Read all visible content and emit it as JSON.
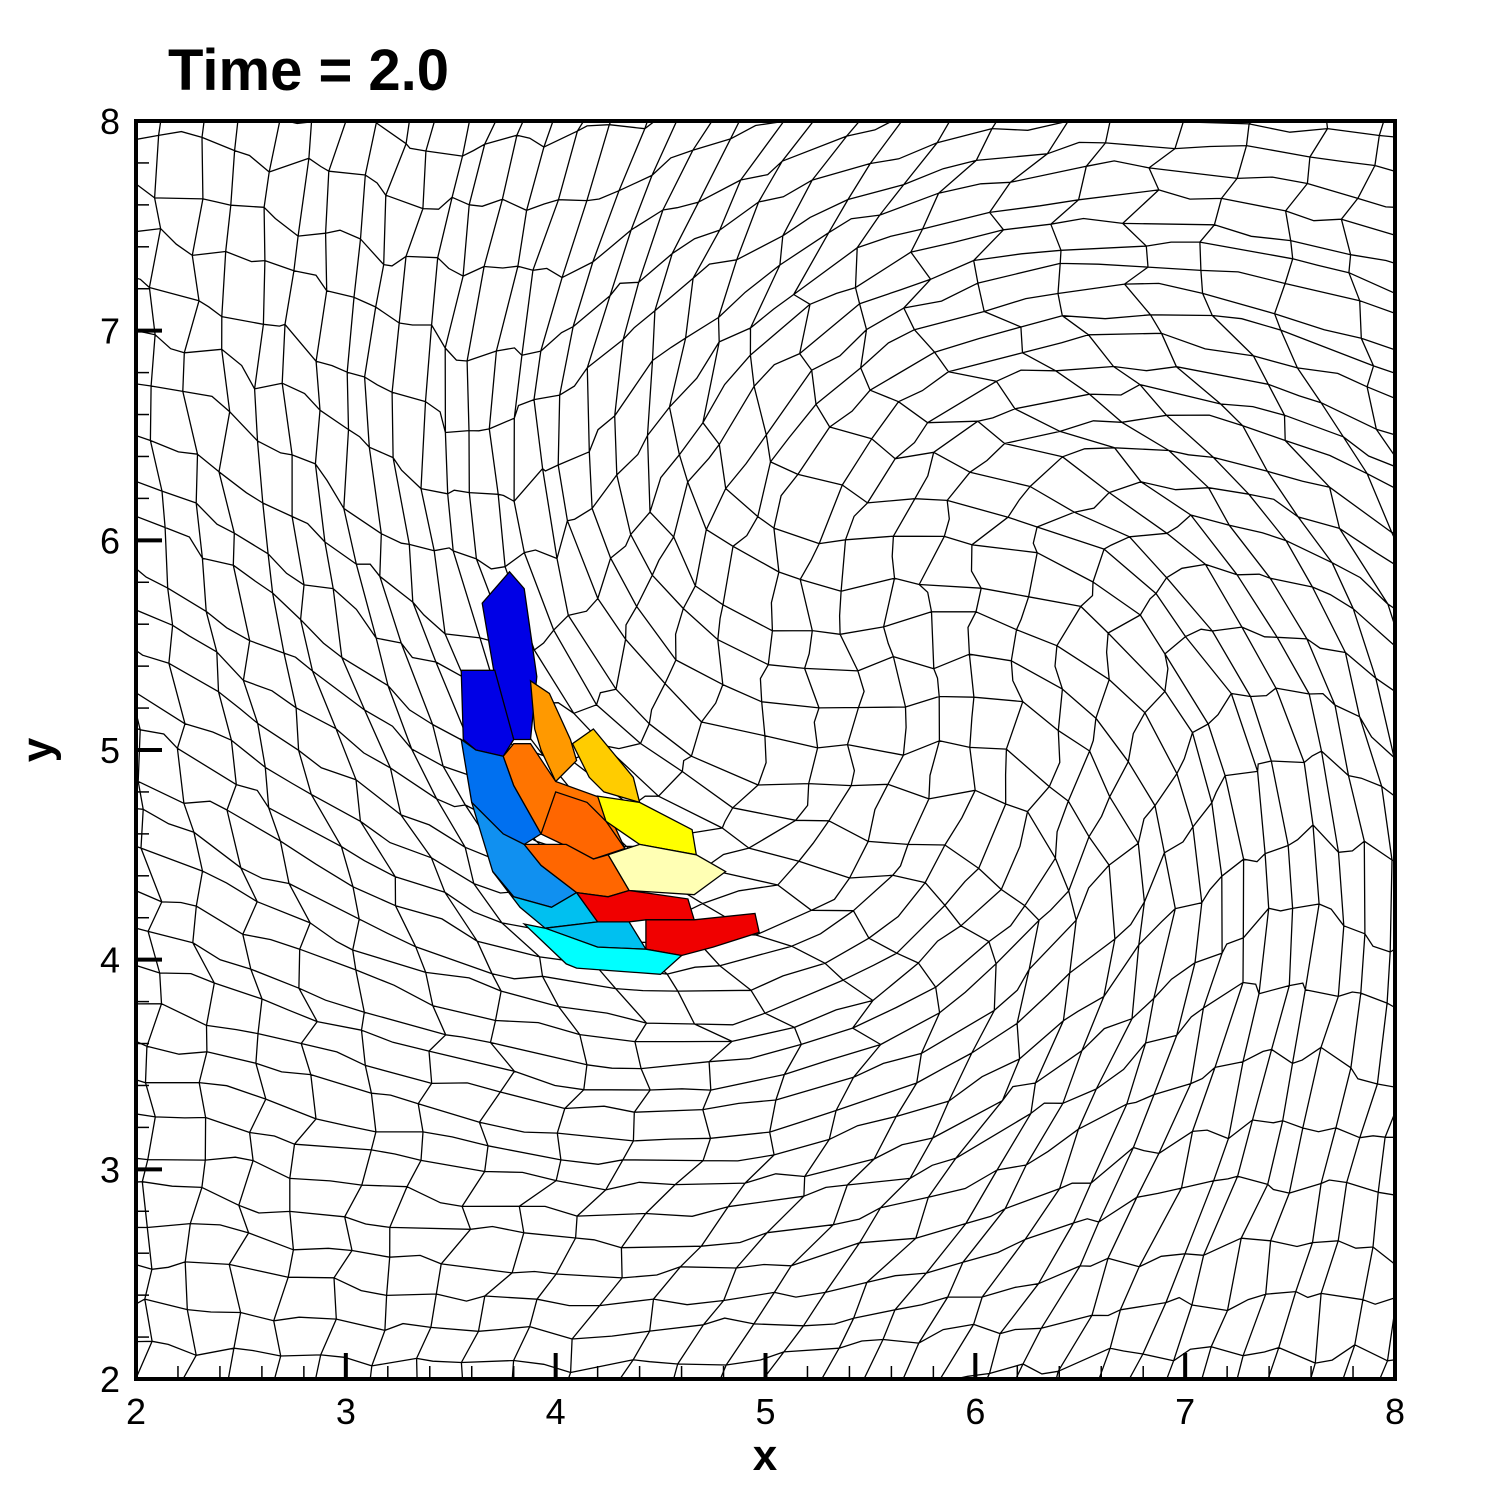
{
  "chart_data": {
    "type": "heatmap",
    "title": "Time = 2.0",
    "xlabel": "x",
    "ylabel": "y",
    "xlim": [
      2,
      8
    ],
    "ylim": [
      2,
      8
    ],
    "x_ticks": [
      "2",
      "3",
      "4",
      "5",
      "6",
      "7",
      "8"
    ],
    "y_ticks": [
      "2",
      "3",
      "4",
      "5",
      "6",
      "7",
      "8"
    ],
    "grid": "voronoi polygonal mesh twisted by a vortex centred near (5.6, 5.4)",
    "colorbar": "none",
    "colored_cells": [
      {
        "color": "#0000e6",
        "polygon": [
          [
            3.65,
            5.7
          ],
          [
            3.78,
            5.85
          ],
          [
            3.85,
            5.77
          ],
          [
            3.91,
            5.35
          ],
          [
            3.88,
            5.05
          ],
          [
            3.8,
            5.05
          ],
          [
            3.71,
            5.35
          ]
        ]
      },
      {
        "color": "#0000e6",
        "polygon": [
          [
            3.55,
            5.38
          ],
          [
            3.71,
            5.38
          ],
          [
            3.8,
            5.05
          ],
          [
            3.75,
            4.97
          ],
          [
            3.62,
            5.0
          ],
          [
            3.56,
            5.05
          ]
        ]
      },
      {
        "color": "#ff9900",
        "polygon": [
          [
            3.88,
            5.33
          ],
          [
            3.97,
            5.27
          ],
          [
            4.07,
            5.05
          ],
          [
            4.1,
            4.95
          ],
          [
            4.0,
            4.85
          ],
          [
            3.93,
            5.0
          ],
          [
            3.9,
            5.1
          ]
        ]
      },
      {
        "color": "#ffcc00",
        "polygon": [
          [
            4.08,
            5.03
          ],
          [
            4.18,
            5.1
          ],
          [
            4.37,
            4.87
          ],
          [
            4.4,
            4.75
          ],
          [
            4.23,
            4.8
          ],
          [
            4.16,
            4.87
          ]
        ]
      },
      {
        "color": "#ff7400",
        "polygon": [
          [
            3.75,
            4.97
          ],
          [
            3.8,
            5.03
          ],
          [
            3.88,
            5.03
          ],
          [
            4.0,
            4.85
          ],
          [
            4.22,
            4.77
          ],
          [
            4.33,
            4.53
          ],
          [
            4.18,
            4.48
          ],
          [
            3.93,
            4.6
          ],
          [
            3.8,
            4.83
          ]
        ]
      },
      {
        "color": "#ffff00",
        "polygon": [
          [
            4.2,
            4.78
          ],
          [
            4.4,
            4.75
          ],
          [
            4.65,
            4.62
          ],
          [
            4.67,
            4.5
          ],
          [
            4.4,
            4.55
          ],
          [
            4.24,
            4.66
          ]
        ]
      },
      {
        "color": "#0070f0",
        "polygon": [
          [
            3.55,
            5.05
          ],
          [
            3.62,
            5.0
          ],
          [
            3.75,
            4.97
          ],
          [
            3.8,
            4.83
          ],
          [
            3.93,
            4.6
          ],
          [
            3.85,
            4.55
          ],
          [
            3.75,
            4.6
          ],
          [
            3.6,
            4.75
          ]
        ]
      },
      {
        "color": "#ff6600",
        "polygon": [
          [
            3.93,
            4.6
          ],
          [
            4.18,
            4.48
          ],
          [
            4.33,
            4.53
          ],
          [
            4.24,
            4.66
          ],
          [
            4.15,
            4.75
          ],
          [
            4.0,
            4.8
          ]
        ]
      },
      {
        "color": "#ffffb4",
        "polygon": [
          [
            4.25,
            4.5
          ],
          [
            4.4,
            4.55
          ],
          [
            4.67,
            4.5
          ],
          [
            4.81,
            4.42
          ],
          [
            4.66,
            4.31
          ],
          [
            4.35,
            4.33
          ]
        ]
      },
      {
        "color": "#1090f0",
        "polygon": [
          [
            3.6,
            4.75
          ],
          [
            3.75,
            4.6
          ],
          [
            3.85,
            4.55
          ],
          [
            3.93,
            4.45
          ],
          [
            4.1,
            4.32
          ],
          [
            3.98,
            4.25
          ],
          [
            3.8,
            4.3
          ],
          [
            3.7,
            4.42
          ]
        ]
      },
      {
        "color": "#ff6600",
        "polygon": [
          [
            3.93,
            4.45
          ],
          [
            4.1,
            4.32
          ],
          [
            4.25,
            4.3
          ],
          [
            4.35,
            4.33
          ],
          [
            4.25,
            4.5
          ],
          [
            4.18,
            4.48
          ],
          [
            4.05,
            4.55
          ],
          [
            3.85,
            4.55
          ]
        ]
      },
      {
        "color": "#00c0f0",
        "polygon": [
          [
            3.7,
            4.42
          ],
          [
            3.8,
            4.3
          ],
          [
            3.98,
            4.25
          ],
          [
            4.1,
            4.32
          ],
          [
            4.2,
            4.18
          ],
          [
            3.95,
            4.15
          ],
          [
            3.83,
            4.25
          ]
        ]
      },
      {
        "color": "#00c0f0",
        "polygon": [
          [
            3.95,
            4.15
          ],
          [
            4.2,
            4.18
          ],
          [
            4.25,
            4.3
          ],
          [
            4.35,
            4.18
          ],
          [
            4.43,
            4.05
          ],
          [
            4.2,
            4.06
          ]
        ]
      },
      {
        "color": "#f00000",
        "polygon": [
          [
            4.1,
            4.32
          ],
          [
            4.25,
            4.3
          ],
          [
            4.35,
            4.33
          ],
          [
            4.63,
            4.29
          ],
          [
            4.66,
            4.19
          ],
          [
            4.43,
            4.19
          ],
          [
            4.35,
            4.18
          ],
          [
            4.2,
            4.18
          ]
        ]
      },
      {
        "color": "#f00000",
        "polygon": [
          [
            4.43,
            4.05
          ],
          [
            4.43,
            4.19
          ],
          [
            4.66,
            4.19
          ],
          [
            4.95,
            4.22
          ],
          [
            4.97,
            4.13
          ],
          [
            4.75,
            4.06
          ],
          [
            4.6,
            4.02
          ]
        ]
      },
      {
        "color": "#00ffff",
        "polygon": [
          [
            3.85,
            4.17
          ],
          [
            3.95,
            4.15
          ],
          [
            4.2,
            4.06
          ],
          [
            4.43,
            4.05
          ],
          [
            4.6,
            4.02
          ],
          [
            4.5,
            3.93
          ],
          [
            4.1,
            3.96
          ],
          [
            4.05,
            3.98
          ]
        ]
      }
    ]
  }
}
